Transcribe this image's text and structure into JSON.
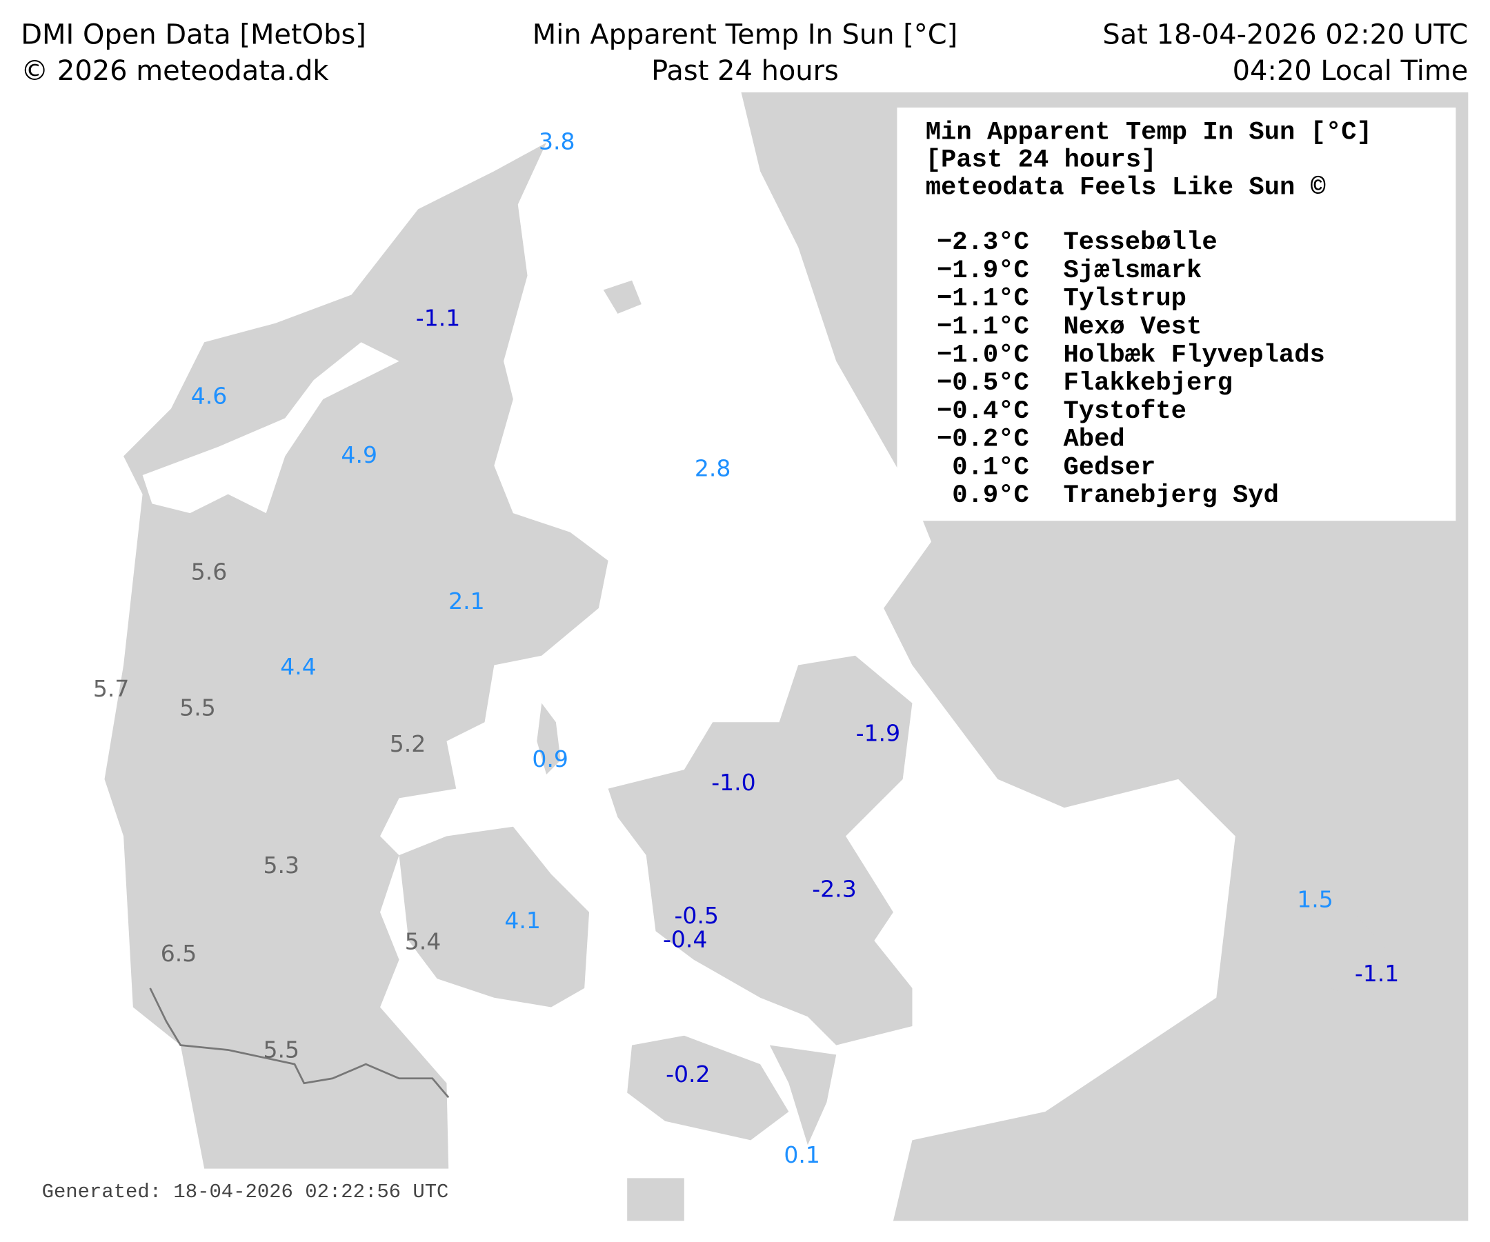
{
  "header": {
    "left": [
      "DMI Open Data [MetObs]",
      "© 2026 meteodata.dk"
    ],
    "center": [
      "Min Apparent Temp In Sun [°C]",
      "Past 24 hours"
    ],
    "right": [
      "Sat 18-04-2026 02:20 UTC",
      "04:20 Local Time"
    ]
  },
  "legend": {
    "title_lines": [
      "Min Apparent Temp In Sun [°C]",
      "[Past 24 hours]",
      "meteodata Feels Like Sun ©"
    ],
    "entries": [
      {
        "value": "−2.3°C",
        "name": "Tessebølle"
      },
      {
        "value": "−1.9°C",
        "name": "Sjælsmark"
      },
      {
        "value": "−1.1°C",
        "name": "Tylstrup"
      },
      {
        "value": "−1.1°C",
        "name": "Nexø Vest"
      },
      {
        "value": "−1.0°C",
        "name": "Holbæk Flyveplads"
      },
      {
        "value": "−0.5°C",
        "name": "Flakkebjerg"
      },
      {
        "value": "−0.4°C",
        "name": "Tystofte"
      },
      {
        "value": "−0.2°C",
        "name": "Abed"
      },
      {
        "value": "0.1°C",
        "name": "Gedser"
      },
      {
        "value": "0.9°C",
        "name": "Tranebjerg Syd"
      }
    ]
  },
  "stations": [
    {
      "label": "3.8",
      "color": "#1e90ff"
    },
    {
      "label": "-1.1",
      "color": "#0000cd"
    },
    {
      "label": "4.6",
      "color": "#1e90ff"
    },
    {
      "label": "4.9",
      "color": "#1e90ff"
    },
    {
      "label": "2.8",
      "color": "#1e90ff"
    },
    {
      "label": "5.6",
      "color": "#666666"
    },
    {
      "label": "2.1",
      "color": "#1e90ff"
    },
    {
      "label": "4.4",
      "color": "#1e90ff"
    },
    {
      "label": "5.7",
      "color": "#666666"
    },
    {
      "label": "5.5",
      "color": "#666666"
    },
    {
      "label": "5.2",
      "color": "#666666"
    },
    {
      "label": "0.9",
      "color": "#1e90ff"
    },
    {
      "label": "-1.9",
      "color": "#0000cd"
    },
    {
      "label": "-1.0",
      "color": "#0000cd"
    },
    {
      "label": "5.3",
      "color": "#666666"
    },
    {
      "label": "-2.3",
      "color": "#0000cd"
    },
    {
      "label": "1.5",
      "color": "#1e90ff"
    },
    {
      "label": "-0.5",
      "color": "#0000cd"
    },
    {
      "label": "4.1",
      "color": "#1e90ff"
    },
    {
      "label": "-0.4",
      "color": "#0000cd"
    },
    {
      "label": "5.4",
      "color": "#666666"
    },
    {
      "label": "6.5",
      "color": "#666666"
    },
    {
      "label": "-1.1",
      "color": "#0000cd"
    },
    {
      "label": "5.5",
      "color": "#666666"
    },
    {
      "label": "-0.2",
      "color": "#0000cd"
    },
    {
      "label": "0.1",
      "color": "#1e90ff"
    }
  ],
  "footer": "Generated: 18-04-2026 02:22:56 UTC"
}
